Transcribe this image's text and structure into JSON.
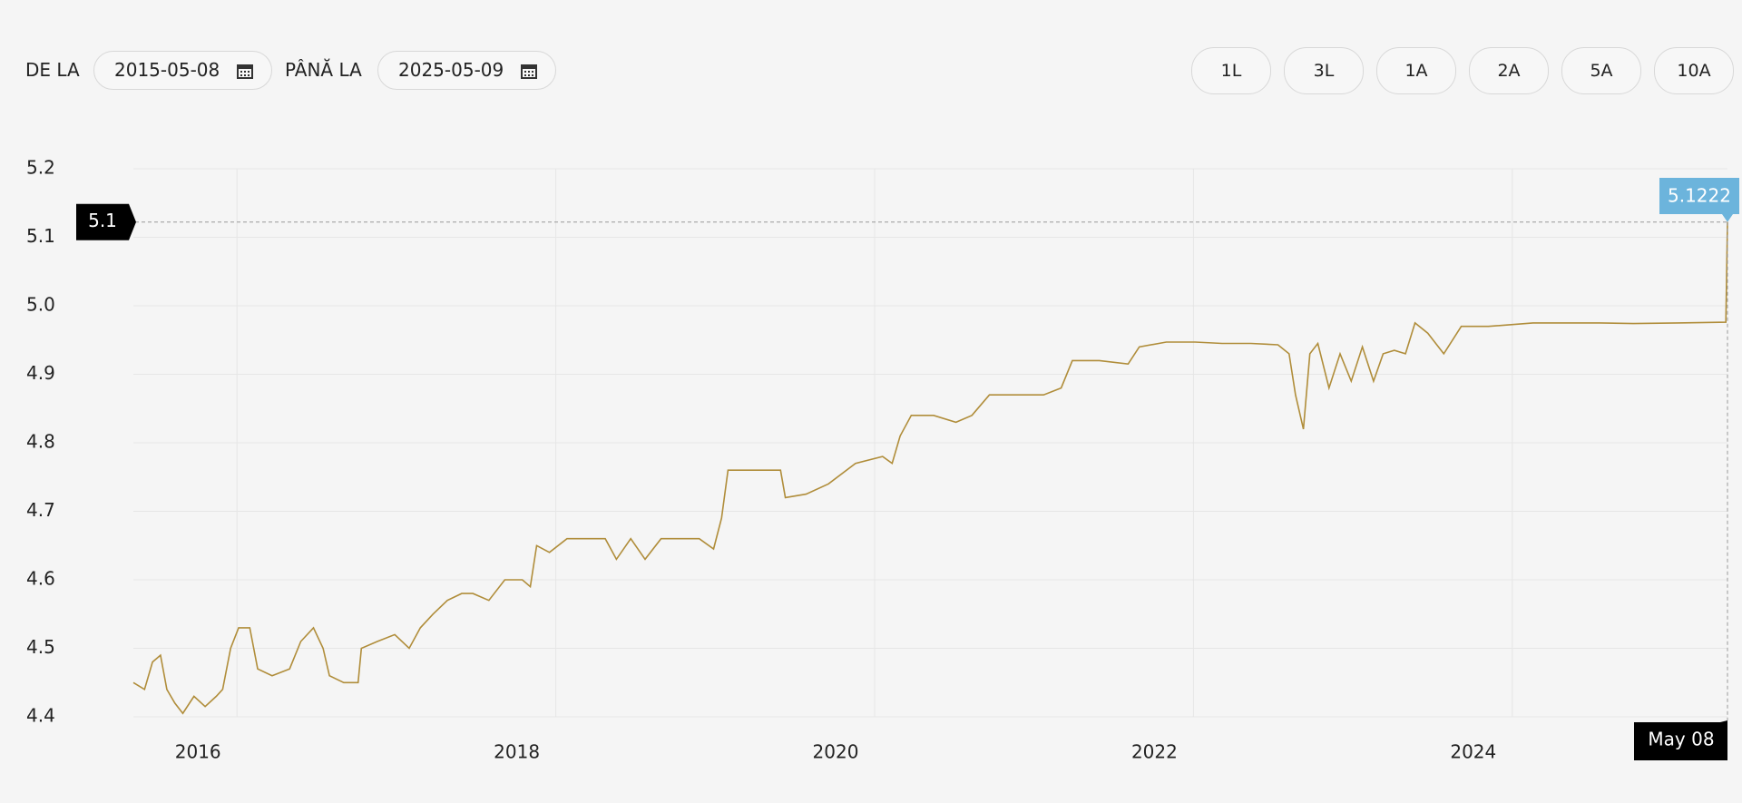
{
  "controls": {
    "from_label": "DE LA",
    "from_date": "2015-05-08",
    "to_label": "PÂNĂ LA",
    "to_date": "2025-05-09",
    "ranges": [
      "1L",
      "3L",
      "1A",
      "2A",
      "5A",
      "10A"
    ]
  },
  "chart_data": {
    "type": "line",
    "color": "#b08d3a",
    "x": [
      2015.35,
      2015.42,
      2015.47,
      2015.52,
      2015.56,
      2015.61,
      2015.66,
      2015.73,
      2015.8,
      2015.87,
      2015.91,
      2015.96,
      2016.01,
      2016.08,
      2016.13,
      2016.22,
      2016.33,
      2016.4,
      2016.48,
      2016.54,
      2016.58,
      2016.67,
      2016.76,
      2016.78,
      2016.88,
      2016.99,
      2017.08,
      2017.15,
      2017.23,
      2017.32,
      2017.41,
      2017.48,
      2017.58,
      2017.68,
      2017.79,
      2017.84,
      2017.88,
      2017.96,
      2018.07,
      2018.21,
      2018.31,
      2018.38,
      2018.47,
      2018.56,
      2018.66,
      2018.8,
      2018.9,
      2018.99,
      2019.04,
      2019.08,
      2019.18,
      2019.32,
      2019.41,
      2019.44,
      2019.57,
      2019.71,
      2019.88,
      2020.05,
      2020.11,
      2020.16,
      2020.23,
      2020.37,
      2020.51,
      2020.61,
      2020.72,
      2020.89,
      2021.06,
      2021.17,
      2021.24,
      2021.41,
      2021.59,
      2021.66,
      2021.83,
      2022.01,
      2022.18,
      2022.36,
      2022.53,
      2022.6,
      2022.64,
      2022.69,
      2022.73,
      2022.78,
      2022.85,
      2022.92,
      2022.99,
      2023.06,
      2023.13,
      2023.19,
      2023.26,
      2023.33,
      2023.39,
      2023.47,
      2023.57,
      2023.68,
      2023.85,
      2024.13,
      2024.55,
      2024.76,
      2025.04,
      2025.34,
      2025.35
    ],
    "values": [
      4.45,
      4.44,
      4.48,
      4.49,
      4.44,
      4.42,
      4.405,
      4.43,
      4.415,
      4.43,
      4.44,
      4.5,
      4.53,
      4.53,
      4.47,
      4.46,
      4.47,
      4.51,
      4.53,
      4.5,
      4.46,
      4.45,
      4.45,
      4.5,
      4.51,
      4.52,
      4.5,
      4.53,
      4.55,
      4.57,
      4.58,
      4.58,
      4.57,
      4.6,
      4.6,
      4.59,
      4.65,
      4.64,
      4.66,
      4.66,
      4.66,
      4.63,
      4.66,
      4.63,
      4.66,
      4.66,
      4.66,
      4.645,
      4.69,
      4.76,
      4.76,
      4.76,
      4.76,
      4.72,
      4.725,
      4.74,
      4.77,
      4.78,
      4.77,
      4.81,
      4.84,
      4.84,
      4.83,
      4.84,
      4.87,
      4.87,
      4.87,
      4.88,
      4.92,
      4.92,
      4.915,
      4.94,
      4.947,
      4.947,
      4.945,
      4.945,
      4.943,
      4.93,
      4.87,
      4.82,
      4.93,
      4.945,
      4.88,
      4.93,
      4.89,
      4.94,
      4.89,
      4.93,
      4.935,
      4.93,
      4.975,
      4.96,
      4.93,
      4.97,
      4.97,
      4.975,
      4.975,
      4.974,
      4.975,
      4.976,
      5.1222
    ],
    "xlim": [
      2015.35,
      2025.35
    ],
    "xticks": [
      2016,
      2018,
      2020,
      2022,
      2024
    ],
    "ylim": [
      4.4,
      5.2
    ],
    "yticks": [
      4.4,
      4.5,
      4.6,
      4.7,
      4.8,
      4.9,
      {
        "value": 5,
        "label": "5.0"
      },
      5.1,
      5.2
    ],
    "grid": true,
    "crosshair": {
      "value": 5.1222,
      "axis_label": "5.1",
      "x_label": "May 08"
    }
  }
}
